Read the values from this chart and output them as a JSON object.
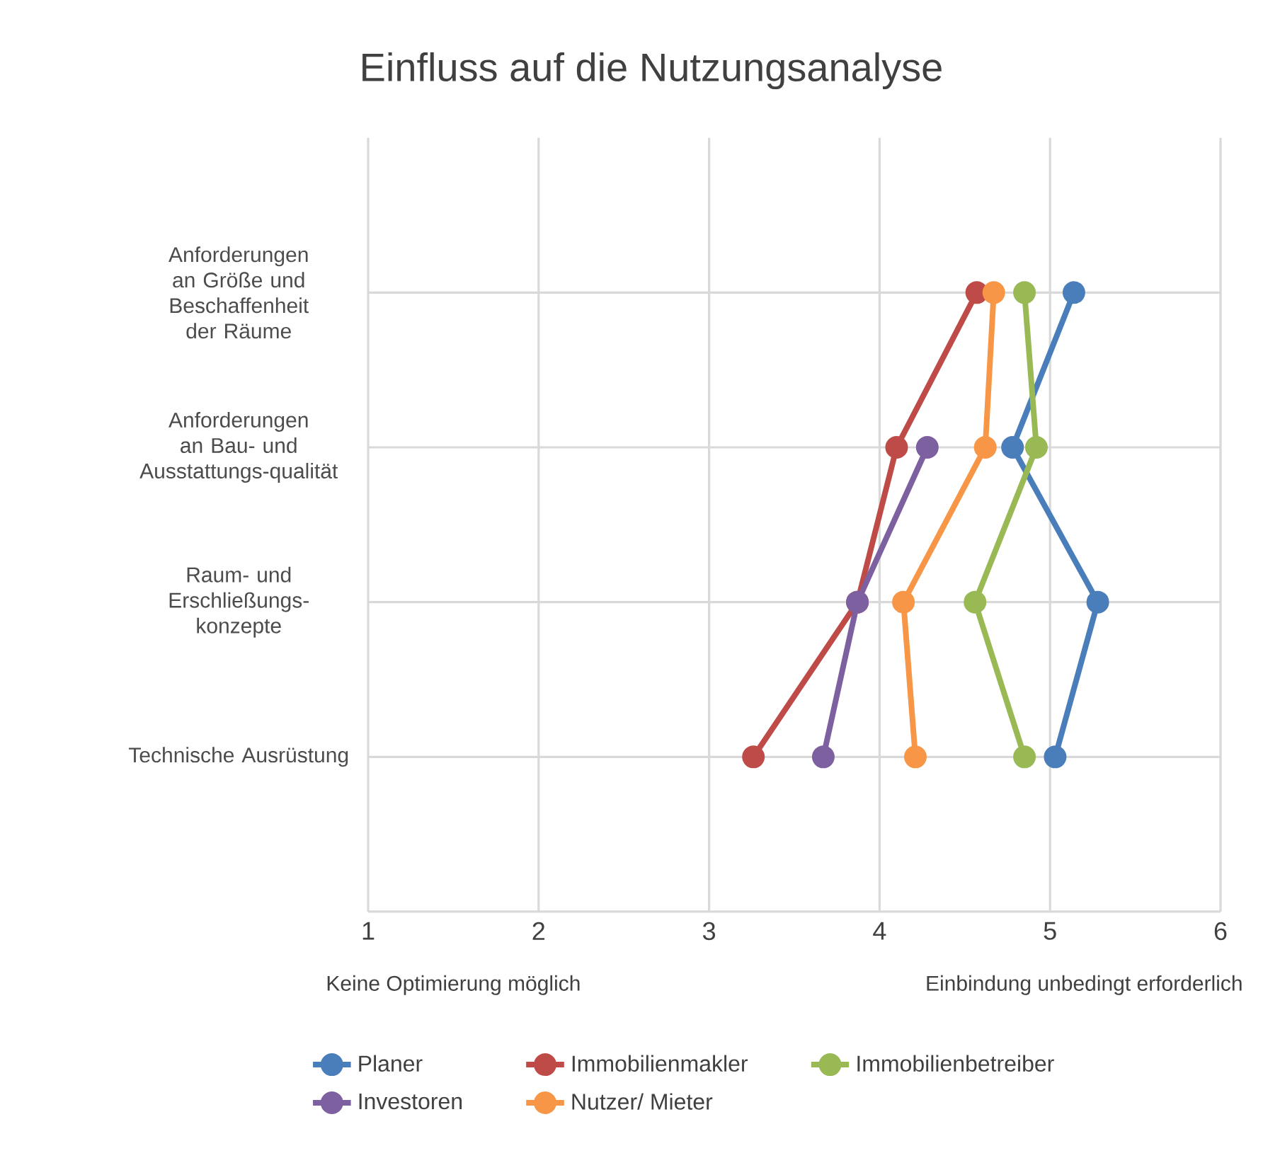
{
  "chart_data": {
    "type": "line",
    "orientation": "horizontal",
    "title": "Einfluss auf die Nutzungsanalyse",
    "categories": [
      "Anforderungen an Größe und Beschaffenheit der Räume",
      "Anforderungen an Bau- und Ausstattungs-qualität",
      "Raum- und Erschließungs-konzepte",
      "Technische Ausrüstung"
    ],
    "series": [
      {
        "name": "Planer",
        "color": "#4a7ebb",
        "values": [
          5.14,
          4.78,
          5.28,
          5.03
        ]
      },
      {
        "name": "Immobilienmakler",
        "color": "#be4b48",
        "values": [
          4.57,
          4.1,
          3.87,
          3.26
        ]
      },
      {
        "name": "Immobilienbetreiber",
        "color": "#98b954",
        "values": [
          4.85,
          4.92,
          4.56,
          4.85
        ]
      },
      {
        "name": "Investoren",
        "color": "#7d60a0",
        "values": [
          null,
          4.28,
          3.87,
          3.67
        ]
      },
      {
        "name": "Nutzer/ Mieter",
        "color": "#f79646",
        "values": [
          4.67,
          4.62,
          4.14,
          4.21
        ]
      }
    ],
    "xlim": [
      1,
      6
    ],
    "xticks": [
      1,
      2,
      3,
      4,
      5,
      6
    ],
    "grid": true,
    "legend": "bottom",
    "marker": "circle",
    "line_style": "solid",
    "annotations": [
      "Keine Optimierung möglich",
      "Einbindung unbedingt erforderlich"
    ]
  }
}
